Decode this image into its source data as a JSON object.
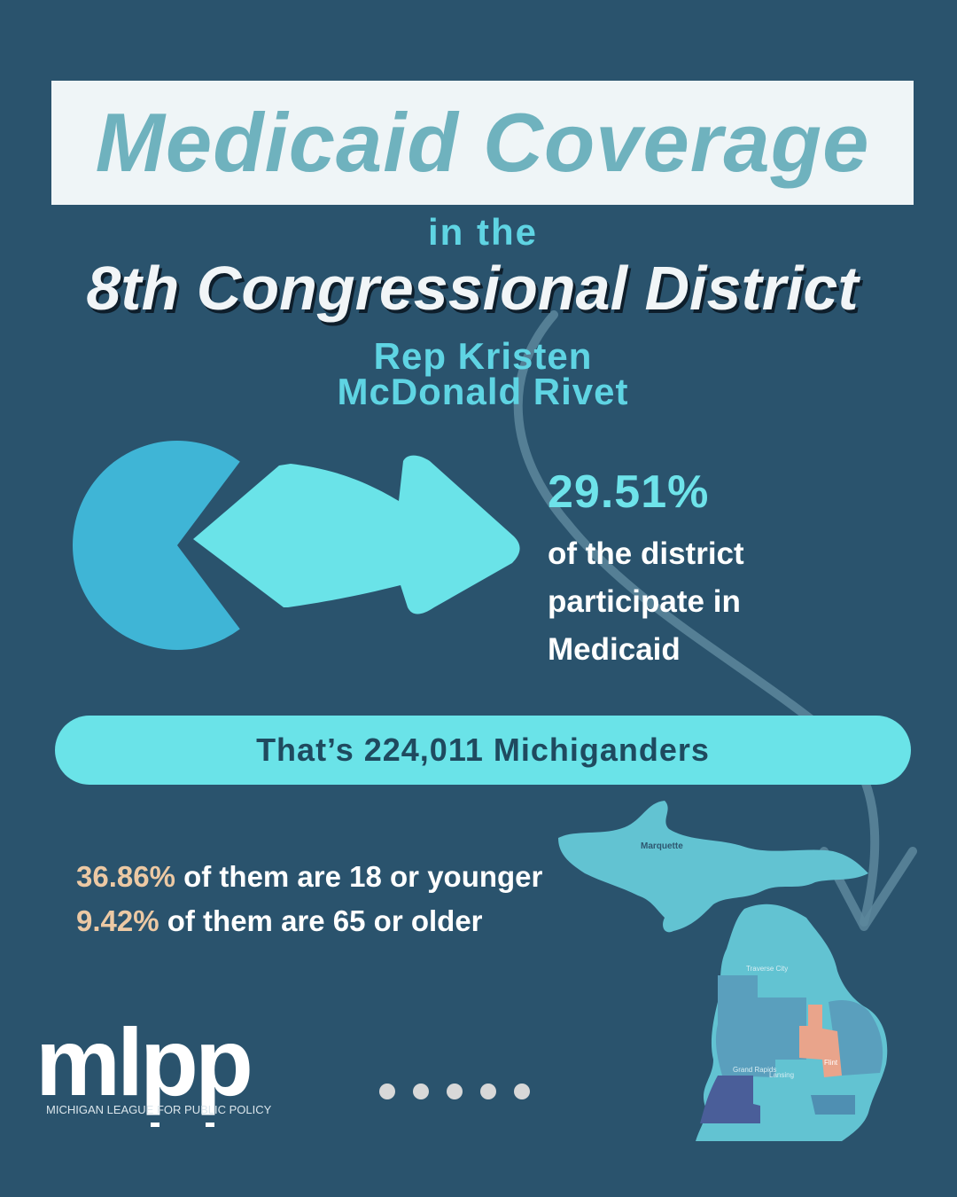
{
  "title": "Medicaid Coverage",
  "subtitle_connector": "in the",
  "district": "8th Congressional District",
  "representative": {
    "line1": "Rep Kristen",
    "line2": "McDonald Rivet"
  },
  "participation": {
    "percent_text": "29.51%",
    "fraction": 0.2951,
    "description": "of the district participate in Medicaid"
  },
  "banner": {
    "text": "That’s 224,011 Michiganders"
  },
  "stats": [
    {
      "percent": "36.86%",
      "text": " of them are 18 or younger"
    },
    {
      "percent": "9.42%",
      "text": " of them are 65 or older"
    }
  ],
  "map": {
    "labels": {
      "marquette": "Marquette",
      "traverse_city": "Traverse City",
      "grand_rapids": "Grand Rapids",
      "lansing": "Lansing",
      "flint": "Flint"
    },
    "highlight_color": "#e9a48b"
  },
  "logo": {
    "mark": "mlpp",
    "name": "MICHIGAN LEAGUE FOR PUBLIC POLICY"
  },
  "pagination": {
    "dots": 5
  },
  "colors": {
    "background": "#2a536d",
    "accent": "#6ae3e8",
    "title": "#6fb2be",
    "pie": "#3fb5d6"
  }
}
